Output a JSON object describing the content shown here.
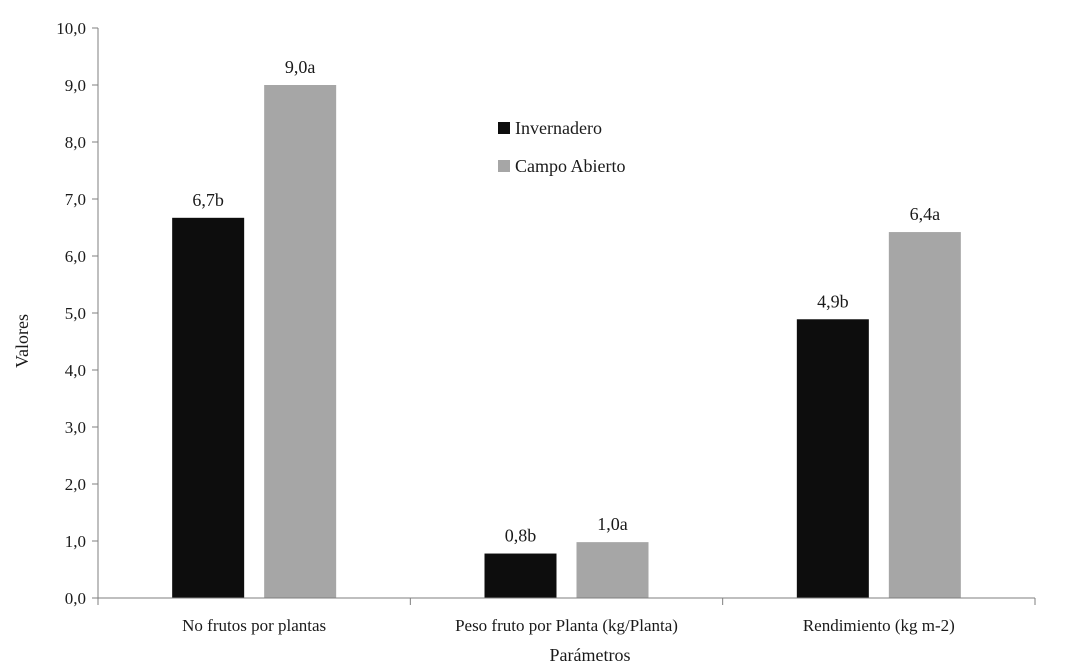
{
  "chart_data": {
    "type": "bar",
    "title": "",
    "xlabel": "Parámetros",
    "ylabel": "Valores",
    "ylim": [
      0,
      10
    ],
    "ytick_step": 1,
    "y_ticks": [
      "0,0",
      "1,0",
      "2,0",
      "3,0",
      "4,0",
      "5,0",
      "6,0",
      "7,0",
      "8,0",
      "9,0",
      "10,0"
    ],
    "grid": false,
    "legend_position": "top-center",
    "categories": [
      "No frutos por plantas",
      "Peso fruto por Planta (kg/Planta)",
      "Rendimiento (kg m-2)"
    ],
    "series": [
      {
        "name": "Invernadero",
        "color": "#0d0d0d",
        "values": [
          6.67,
          0.78,
          4.89
        ],
        "labels": [
          "6,7b",
          "0,8b",
          "4,9b"
        ]
      },
      {
        "name": "Campo Abierto",
        "color": "#a6a6a6",
        "values": [
          9.0,
          0.98,
          6.42
        ],
        "labels": [
          "9,0a",
          "1,0a",
          "6,4a"
        ]
      }
    ]
  }
}
